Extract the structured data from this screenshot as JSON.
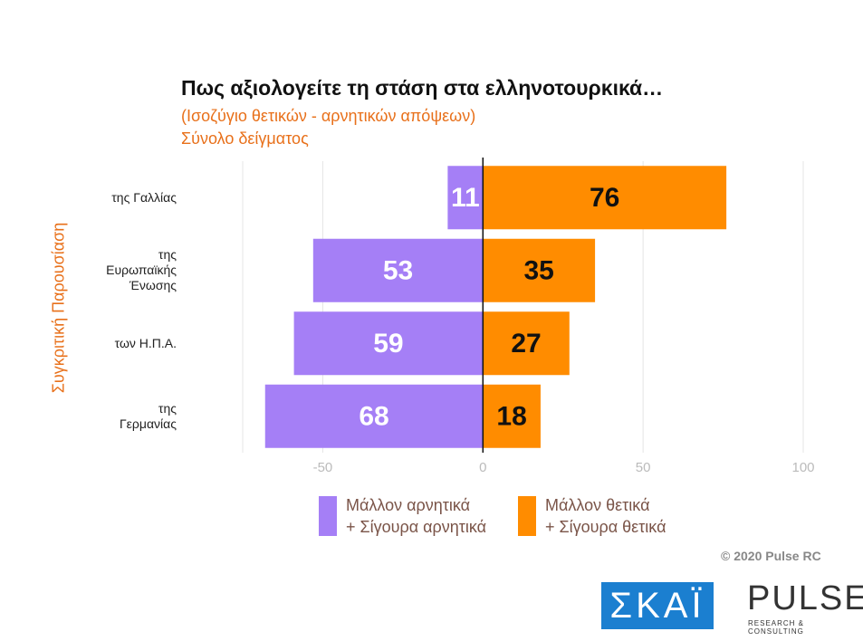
{
  "chart_data": {
    "type": "diverging_bar",
    "title": "Πως αξιολογείτε τη στάση στα ελληνοτουρκικά…",
    "subtitle": [
      "(Ισοζύγιο θετικών - αρνητικών απόψεων)",
      "Σύνολο δείγματος"
    ],
    "ylabel": "Συγκριτική  Παρουσίαση",
    "categories": [
      "της Γαλλίας",
      "της\nΕυρωπαϊκής\nΈνωσης",
      "των Η.Π.Α.",
      "της\nΓερμανίας"
    ],
    "series": [
      {
        "name": "Μάλλον αρνητικά\n+ Σίγουρα αρνητικά",
        "color": "#a57ff6",
        "values": [
          -11,
          -53,
          -59,
          -68
        ],
        "value_labels": [
          "11",
          "53",
          "59",
          "68"
        ],
        "label_color": "#ffffff"
      },
      {
        "name": "Μάλλον θετικά\n+ Σίγουρα θετικά",
        "color": "#ff8c00",
        "values": [
          76,
          35,
          27,
          18
        ],
        "label_color": "#111111"
      }
    ],
    "xlim": [
      -75,
      100
    ],
    "xticks": [
      -50,
      0,
      50,
      100
    ],
    "grid": true,
    "copyright": "© 2020 Pulse RC",
    "logos": {
      "skai": "ΣΚΑΪ",
      "pulse": "PULSE",
      "pulse_tagline": "RESEARCH & CONSULTING"
    }
  }
}
